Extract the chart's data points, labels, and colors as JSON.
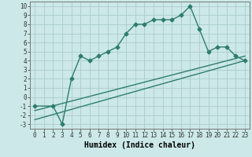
{
  "title": "",
  "xlabel": "Humidex (Indice chaleur)",
  "bg_color": "#cce8e8",
  "grid_color": "#aacccc",
  "line_color": "#2e7d6e",
  "xlim": [
    -0.5,
    23.5
  ],
  "ylim": [
    -3.5,
    10.5
  ],
  "xticks": [
    0,
    1,
    2,
    3,
    4,
    5,
    6,
    7,
    8,
    9,
    10,
    11,
    12,
    13,
    14,
    15,
    16,
    17,
    18,
    19,
    20,
    21,
    22,
    23
  ],
  "yticks": [
    -3,
    -2,
    -1,
    0,
    1,
    2,
    3,
    4,
    5,
    6,
    7,
    8,
    9,
    10
  ],
  "curve1_x": [
    0,
    2,
    3,
    4,
    5,
    6,
    7,
    8,
    9,
    10,
    11,
    12,
    13,
    14,
    15,
    16,
    17,
    18,
    19,
    20,
    21,
    22,
    23
  ],
  "curve1_y": [
    -1,
    -1,
    -3,
    2,
    4.5,
    4,
    4.5,
    5,
    5.5,
    7,
    8,
    8,
    8.5,
    8.5,
    8.5,
    9,
    10,
    7.5,
    5,
    5.5,
    5.5,
    4.5,
    4
  ],
  "line2_x": [
    0,
    23
  ],
  "line2_y": [
    -2.5,
    4.0
  ],
  "line3_x": [
    0,
    23
  ],
  "line3_y": [
    -1.5,
    4.5
  ],
  "marker": "D",
  "markersize": 2.5,
  "linewidth": 1.0,
  "tick_fontsize": 5.5,
  "xlabel_fontsize": 7.0
}
